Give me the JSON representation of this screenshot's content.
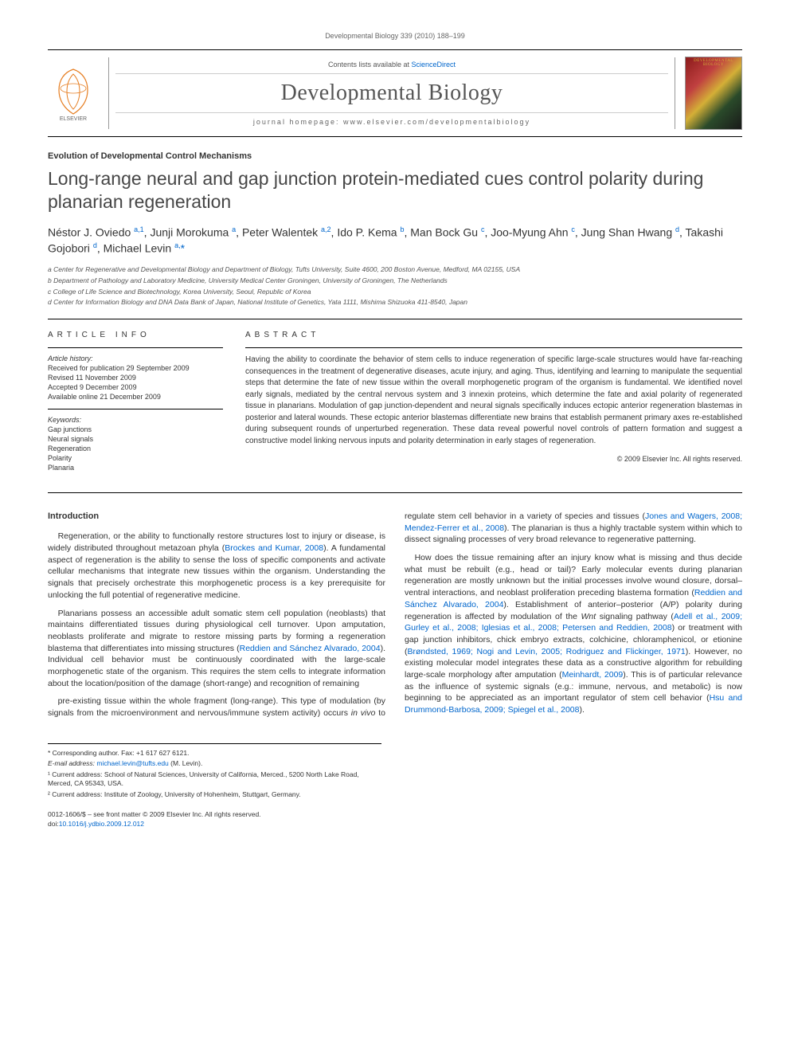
{
  "running_header": "Developmental Biology 339 (2010) 188–199",
  "masthead": {
    "contents_line_prefix": "Contents lists available at ",
    "contents_link": "ScienceDirect",
    "journal_name": "Developmental Biology",
    "homepage_label": "journal homepage: ",
    "homepage_url": "www.elsevier.com/developmentalbiology",
    "cover_label": "DEVELOPMENTAL BIOLOGY"
  },
  "section_label": "Evolution of Developmental Control Mechanisms",
  "title": "Long-range neural and gap junction protein-mediated cues control polarity during planarian regeneration",
  "authors_html": "Néstor J. Oviedo <sup>a,1</sup>, Junji Morokuma <sup>a</sup>, Peter Walentek <sup>a,2</sup>, Ido P. Kema <sup>b</sup>, Man Bock Gu <sup>c</sup>, Joo-Myung Ahn <sup>c</sup>, Jung Shan Hwang <sup>d</sup>, Takashi Gojobori <sup>d</sup>, Michael Levin <sup>a,</sup><span class='corr'>*</span>",
  "affiliations": [
    "a Center for Regenerative and Developmental Biology and Department of Biology, Tufts University, Suite 4600, 200 Boston Avenue, Medford, MA 02155, USA",
    "b Department of Pathology and Laboratory Medicine, University Medical Center Groningen, University of Groningen, The Netherlands",
    "c College of Life Science and Biotechnology, Korea University, Seoul, Republic of Korea",
    "d Center for Information Biology and DNA Data Bank of Japan, National Institute of Genetics, Yata 1111, Mishima Shizuoka 411-8540, Japan"
  ],
  "info": {
    "heading": "ARTICLE INFO",
    "history_label": "Article history:",
    "history": [
      "Received for publication 29 September 2009",
      "Revised 11 November 2009",
      "Accepted 9 December 2009",
      "Available online 21 December 2009"
    ],
    "keywords_label": "Keywords:",
    "keywords": [
      "Gap junctions",
      "Neural signals",
      "Regeneration",
      "Polarity",
      "Planaria"
    ]
  },
  "abstract": {
    "heading": "ABSTRACT",
    "text": "Having the ability to coordinate the behavior of stem cells to induce regeneration of specific large-scale structures would have far-reaching consequences in the treatment of degenerative diseases, acute injury, and aging. Thus, identifying and learning to manipulate the sequential steps that determine the fate of new tissue within the overall morphogenetic program of the organism is fundamental. We identified novel early signals, mediated by the central nervous system and 3 innexin proteins, which determine the fate and axial polarity of regenerated tissue in planarians. Modulation of gap junction-dependent and neural signals specifically induces ectopic anterior regeneration blastemas in posterior and lateral wounds. These ectopic anterior blastemas differentiate new brains that establish permanent primary axes re-established during subsequent rounds of unperturbed regeneration. These data reveal powerful novel controls of pattern formation and suggest a constructive model linking nervous inputs and polarity determination in early stages of regeneration.",
    "copyright": "© 2009 Elsevier Inc. All rights reserved."
  },
  "body": {
    "intro_heading": "Introduction",
    "p1_html": "Regeneration, or the ability to functionally restore structures lost to injury or disease, is widely distributed throughout metazoan phyla (<a href='#'>Brockes and Kumar, 2008</a>). A fundamental aspect of regeneration is the ability to sense the loss of specific components and activate cellular mechanisms that integrate new tissues within the organism. Understanding the signals that precisely orchestrate this morphogenetic process is a key prerequisite for unlocking the full potential of regenerative medicine.",
    "p2_html": "Planarians possess an accessible adult somatic stem cell population (neoblasts) that maintains differentiated tissues during physiological cell turnover. Upon amputation, neoblasts proliferate and migrate to restore missing parts by forming a regeneration blastema that differentiates into missing structures (<a href='#'>Reddien and Sánchez Alvarado, 2004</a>). Individual cell behavior must be continuously coordinated with the large-scale morphogenetic state of the organism. This requires the stem cells to integrate information about the location/position of the damage (short-range) and recognition of remaining",
    "p3_html": "pre-existing tissue within the whole fragment (long-range). This type of modulation (by signals from the microenvironment and nervous/immune system activity) occurs <em>in vivo</em> to regulate stem cell behavior in a variety of species and tissues (<a href='#'>Jones and Wagers, 2008; Mendez-Ferrer et al., 2008</a>). The planarian is thus a highly tractable system within which to dissect signaling processes of very broad relevance to regenerative patterning.",
    "p4_html": "How does the tissue remaining after an injury know what is missing and thus decide what must be rebuilt (e.g., head or tail)? Early molecular events during planarian regeneration are mostly unknown but the initial processes involve wound closure, dorsal–ventral interactions, and neoblast proliferation preceding blastema formation (<a href='#'>Reddien and Sánchez Alvarado, 2004</a>). Establishment of anterior–posterior (A/P) polarity during regeneration is affected by modulation of the <em>Wnt</em> signaling pathway (<a href='#'>Adell et al., 2009; Gurley et al., 2008; Iglesias et al., 2008; Petersen and Reddien, 2008</a>) or treatment with gap junction inhibitors, chick embryo extracts, colchicine, chloramphenicol, or etionine (<a href='#'>Brøndsted, 1969; Nogi and Levin, 2005; Rodriguez and Flickinger, 1971</a>). However, no existing molecular model integrates these data as a constructive algorithm for rebuilding large-scale morphology after amputation (<a href='#'>Meinhardt, 2009</a>). This is of particular relevance as the influence of systemic signals (e.g.: immune, nervous, and metabolic) is now beginning to be appreciated as an important regulator of stem cell behavior (<a href='#'>Hsu and Drummond-Barbosa, 2009; Spiegel et al., 2008</a>)."
  },
  "footnotes": {
    "corr": "* Corresponding author. Fax: +1 617 627 6121.",
    "email_label": "E-mail address: ",
    "email": "michael.levin@tufts.edu",
    "email_suffix": " (M. Levin).",
    "n1": "¹ Current address: School of Natural Sciences, University of California, Merced., 5200 North Lake Road, Merced, CA 95343, USA.",
    "n2": "² Current address: Institute of Zoology, University of Hohenheim, Stuttgart, Germany."
  },
  "bottom": {
    "front_matter": "0012-1606/$ – see front matter © 2009 Elsevier Inc. All rights reserved.",
    "doi_label": "doi:",
    "doi": "10.1016/j.ydbio.2009.12.012"
  },
  "colors": {
    "link": "#0066cc",
    "text": "#333333",
    "muted": "#666666",
    "title": "#464646"
  }
}
